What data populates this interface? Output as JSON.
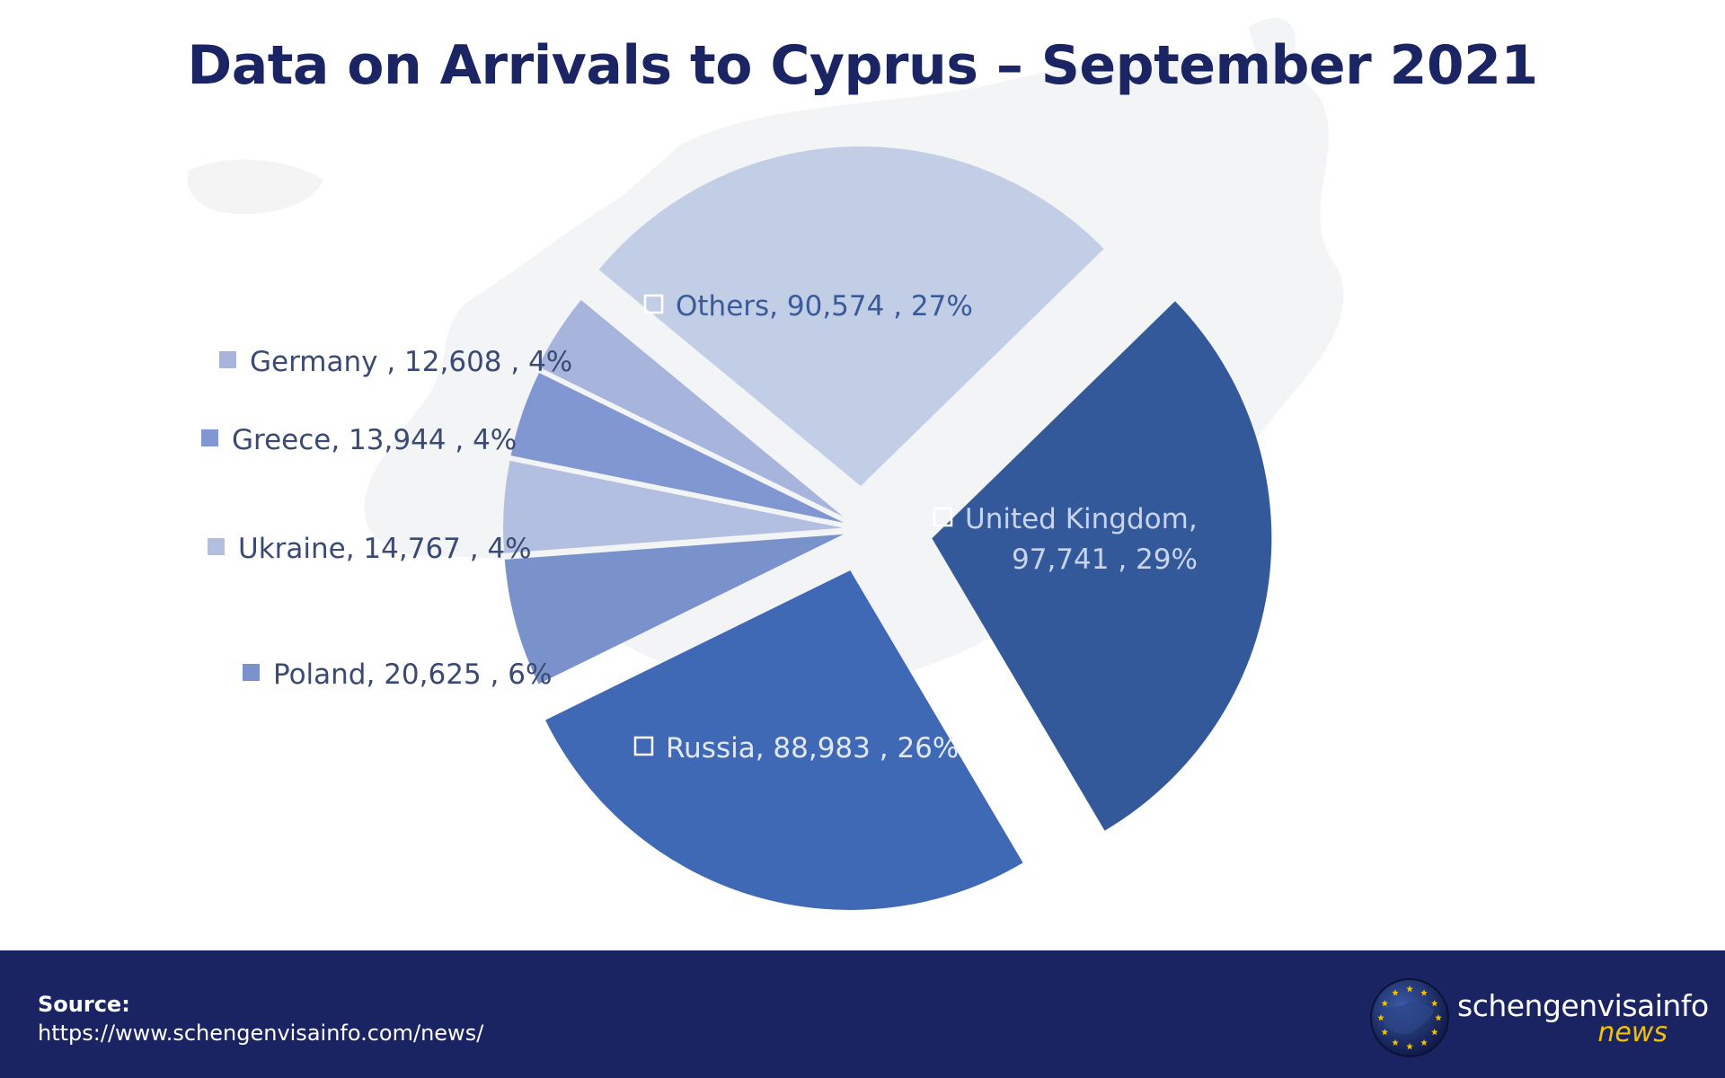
{
  "title": "Data on Arrivals to Cyprus – September 2021",
  "chart_data": {
    "type": "pie",
    "title": "Data on Arrivals to Cyprus – September 2021",
    "slices": [
      {
        "label": "United Kingdom",
        "value": 97741,
        "value_text": "97,741",
        "percent": "29%",
        "color": "#34599a",
        "label_color": "#c9d4ee"
      },
      {
        "label": "Russia",
        "value": 88983,
        "value_text": "88,983",
        "percent": "26%",
        "color": "#3f68b5",
        "label_color": "#e2e8f6"
      },
      {
        "label": "Poland",
        "value": 20625,
        "value_text": "20,625",
        "percent": "6%",
        "color": "#7a92cc",
        "label_color": "#3a4a73"
      },
      {
        "label": "Ukraine",
        "value": 14767,
        "value_text": "14,767",
        "percent": "4%",
        "color": "#b3bfe0",
        "label_color": "#3a4a73"
      },
      {
        "label": "Greece",
        "value": 13944,
        "value_text": "13,944",
        "percent": "4%",
        "color": "#8097d1",
        "label_color": "#3a4a73"
      },
      {
        "label": "Germany",
        "value": 12608,
        "value_text": "12,608",
        "percent": "4%",
        "color": "#a7b5dd",
        "label_color": "#3a4a73"
      },
      {
        "label": "Others",
        "value": 90574,
        "value_text": "90,574",
        "percent": "27%",
        "color": "#c2cde6",
        "label_color": "#3a5a9a"
      }
    ]
  },
  "footer": {
    "source_label": "Source:",
    "source_url": "https://www.schengenvisainfo.com/news/",
    "brand_name": "schengenvisainfo",
    "brand_sub": "news"
  },
  "colors": {
    "navy": "#1b2462",
    "gold": "#f2c200"
  }
}
